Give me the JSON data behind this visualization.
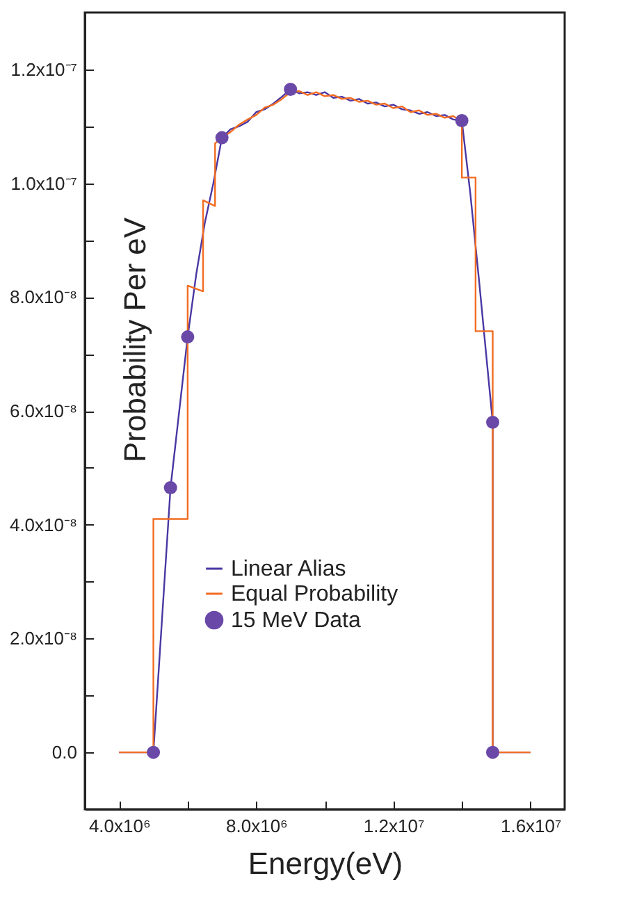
{
  "chart_data": {
    "type": "line",
    "xlabel": "Energy(eV)",
    "ylabel": "Probability Per eV",
    "xlim": [
      3000000,
      17000000
    ],
    "ylim": [
      -1e-08,
      1.3e-07
    ],
    "xticks": [
      {
        "value": 4000000,
        "label": "4.0x10⁶"
      },
      {
        "value": 6000000,
        "label": null
      },
      {
        "value": 8000000,
        "label": "8.0x10⁶"
      },
      {
        "value": 10000000,
        "label": null
      },
      {
        "value": 12000000,
        "label": "1.2x10⁷"
      },
      {
        "value": 14000000,
        "label": null
      },
      {
        "value": 16000000,
        "label": "1.6x10⁷"
      }
    ],
    "yticks": [
      {
        "value": 0,
        "label": "0.0"
      },
      {
        "value": 1e-08,
        "label": null
      },
      {
        "value": 2e-08,
        "label": "2.0x10⁻⁸"
      },
      {
        "value": 3e-08,
        "label": null
      },
      {
        "value": 4e-08,
        "label": "4.0x10⁻⁸"
      },
      {
        "value": 5e-08,
        "label": null
      },
      {
        "value": 6e-08,
        "label": "6.0x10⁻⁸"
      },
      {
        "value": 7e-08,
        "label": null
      },
      {
        "value": 8e-08,
        "label": "8.0x10⁻⁸"
      },
      {
        "value": 9e-08,
        "label": null
      },
      {
        "value": 1e-07,
        "label": "1.0x10⁻⁷"
      },
      {
        "value": 1.1e-07,
        "label": null
      },
      {
        "value": 1.2e-07,
        "label": "1.2x10⁻⁷"
      }
    ],
    "legend": "bottom",
    "series": [
      {
        "name": "Linear Alias",
        "color": "#4b37a3",
        "x": [
          4000000,
          5000000,
          5500000,
          6000000,
          6250000,
          6500000,
          6750000,
          7000000,
          7250000,
          7500000,
          7750000,
          8000000,
          8250000,
          8500000,
          8750000,
          9000000,
          9250000,
          9500000,
          9750000,
          10000000,
          10250000,
          10500000,
          10750000,
          11000000,
          11250000,
          11500000,
          11750000,
          12000000,
          12250000,
          12500000,
          12750000,
          13000000,
          13250000,
          13500000,
          13750000,
          14000000,
          14250000,
          14500000,
          14900000,
          14900000,
          16000000
        ],
        "values": [
          0,
          0,
          4.65e-08,
          7.3e-08,
          8.4e-08,
          9.3e-08,
          1e-07,
          1.08e-07,
          1.095e-07,
          1.1e-07,
          1.108e-07,
          1.125e-07,
          1.13e-07,
          1.14e-07,
          1.152e-07,
          1.165e-07,
          1.158e-07,
          1.16e-07,
          1.155e-07,
          1.16e-07,
          1.15e-07,
          1.152e-07,
          1.145e-07,
          1.148e-07,
          1.14e-07,
          1.142e-07,
          1.135e-07,
          1.138e-07,
          1.13e-07,
          1.128e-07,
          1.122e-07,
          1.125e-07,
          1.118e-07,
          1.12e-07,
          1.112e-07,
          1.11e-07,
          9.8e-08,
          8.3e-08,
          5.8e-08,
          0,
          0
        ]
      },
      {
        "name": "Equal Probability",
        "color": "#f26c22",
        "x": [
          4000000,
          5000000,
          5000000,
          6000000,
          6000000,
          6450000,
          6450000,
          6800000,
          6800000,
          7000000,
          7250000,
          7500000,
          7750000,
          8000000,
          8250000,
          8500000,
          8750000,
          9000000,
          9250000,
          9500000,
          9750000,
          10000000,
          10250000,
          10500000,
          10750000,
          11000000,
          11250000,
          11500000,
          11750000,
          12000000,
          12250000,
          12500000,
          12750000,
          13000000,
          13250000,
          13500000,
          13750000,
          13950000,
          14000000,
          14000000,
          14400000,
          14400000,
          14900000,
          14900000,
          16000000
        ],
        "values": [
          0,
          0,
          4.1e-08,
          4.1e-08,
          8.2e-08,
          8.1e-08,
          9.7e-08,
          9.6e-08,
          1.07e-07,
          1.08e-07,
          1.09e-07,
          1.103e-07,
          1.112e-07,
          1.12e-07,
          1.133e-07,
          1.138e-07,
          1.148e-07,
          1.16e-07,
          1.162e-07,
          1.155e-07,
          1.16e-07,
          1.153e-07,
          1.155e-07,
          1.148e-07,
          1.15e-07,
          1.143e-07,
          1.145e-07,
          1.138e-07,
          1.14e-07,
          1.132e-07,
          1.135e-07,
          1.125e-07,
          1.128e-07,
          1.12e-07,
          1.122e-07,
          1.115e-07,
          1.118e-07,
          1.11e-07,
          1.11e-07,
          1.01e-07,
          1.01e-07,
          7.4e-08,
          7.4e-08,
          0,
          0
        ]
      },
      {
        "name": "15 MeV Data",
        "type": "scatter",
        "color": "#6a48a8",
        "x": [
          5000000,
          5500000,
          6000000,
          7000000,
          9000000,
          14000000,
          14900000,
          14900000
        ],
        "values": [
          0,
          4.65e-08,
          7.3e-08,
          1.08e-07,
          1.165e-07,
          1.11e-07,
          5.8e-08,
          0
        ]
      }
    ]
  }
}
